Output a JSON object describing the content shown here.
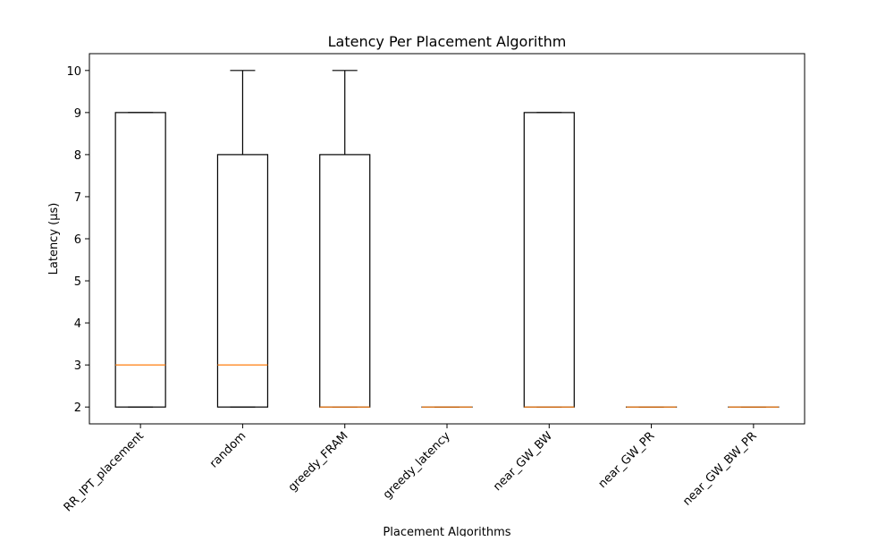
{
  "chart_data": {
    "type": "boxplot",
    "title": "Latency Per Placement Algorithm",
    "xlabel": "Placement Algorithms",
    "ylabel": "Latency (µs)",
    "categories": [
      "RR_IPT_placement",
      "random",
      "greedy_FRAM",
      "greedy_latency",
      "near_GW_BW",
      "near_GW_PR",
      "near_GW_BW_PR"
    ],
    "boxes": [
      {
        "label": "RR_IPT_placement",
        "whisker_low": 2,
        "q1": 2,
        "median": 3,
        "q3": 9,
        "whisker_high": 9
      },
      {
        "label": "random",
        "whisker_low": 2,
        "q1": 2,
        "median": 3,
        "q3": 8,
        "whisker_high": 10
      },
      {
        "label": "greedy_FRAM",
        "whisker_low": 2,
        "q1": 2,
        "median": 2,
        "q3": 8,
        "whisker_high": 10
      },
      {
        "label": "greedy_latency",
        "whisker_low": 2,
        "q1": 2,
        "median": 2,
        "q3": 2,
        "whisker_high": 2
      },
      {
        "label": "near_GW_BW",
        "whisker_low": 2,
        "q1": 2,
        "median": 2,
        "q3": 9,
        "whisker_high": 9
      },
      {
        "label": "near_GW_PR",
        "whisker_low": 2,
        "q1": 2,
        "median": 2,
        "q3": 2,
        "whisker_high": 2
      },
      {
        "label": "near_GW_BW_PR",
        "whisker_low": 2,
        "q1": 2,
        "median": 2,
        "q3": 2,
        "whisker_high": 2
      }
    ],
    "yticks": [
      2,
      3,
      4,
      5,
      6,
      7,
      8,
      9,
      10
    ],
    "ylim": [
      1.6,
      10.4
    ],
    "x_tick_rotation_deg": 45,
    "grid": false,
    "colors": {
      "box": "#000000",
      "median": "#ff7f0e",
      "background": "#ffffff"
    }
  }
}
